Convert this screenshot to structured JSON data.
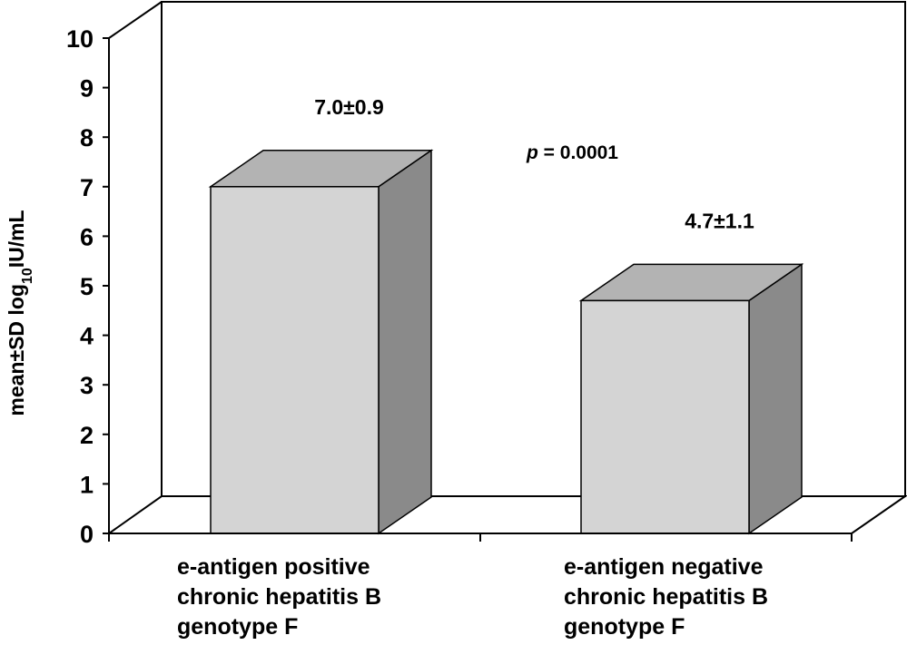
{
  "chart_data": {
    "type": "bar",
    "categories": [
      [
        "e-antigen positive",
        "chronic hepatitis B",
        "genotype F"
      ],
      [
        "e-antigen negative",
        "chronic hepatitis B",
        "genotype F"
      ]
    ],
    "values": [
      7.0,
      4.7
    ],
    "data_labels": [
      "7.0±0.9",
      "4.7±1.1"
    ],
    "annotation": {
      "italic": "p",
      "text": " = 0.0001"
    },
    "xlabel": "",
    "ylabel": {
      "main": "mean±SD log",
      "sub": "10",
      "unit": "IU/mL"
    },
    "ylim": [
      0,
      10
    ],
    "yticks": [
      "0",
      "1",
      "2",
      "3",
      "4",
      "5",
      "6",
      "7",
      "8",
      "9",
      "10"
    ],
    "grid": false,
    "style": "3d",
    "colors": {
      "front": "#d4d4d4",
      "top": "#b3b3b3",
      "side": "#8a8a8a",
      "axis": "#000000"
    }
  }
}
